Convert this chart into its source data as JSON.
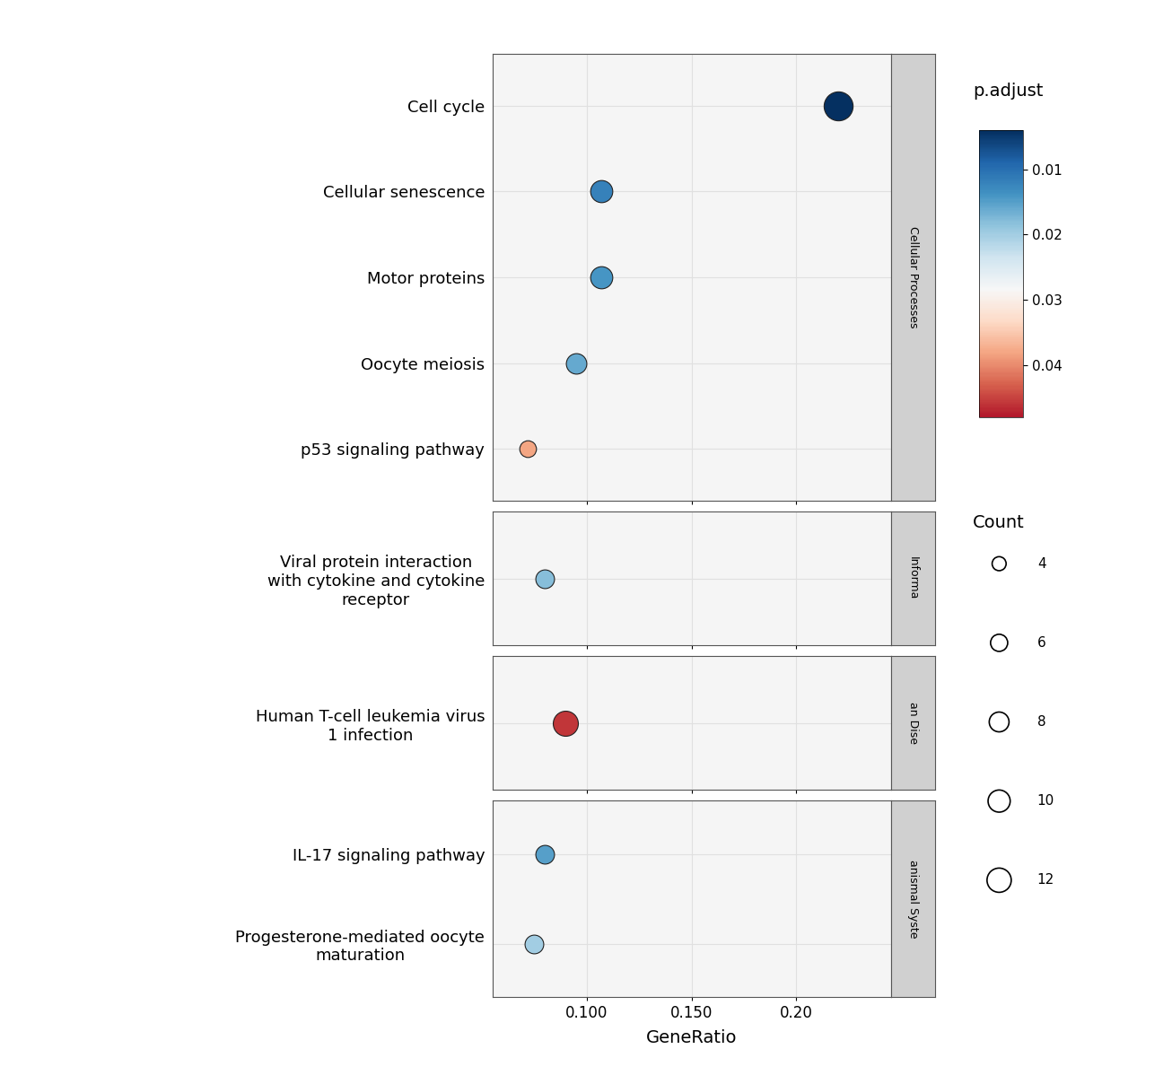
{
  "pathways": [
    {
      "name": "Cell cycle",
      "gene_ratio": 0.22,
      "p_adjust": 0.004,
      "count": 12,
      "category": "Cellular Processes"
    },
    {
      "name": "Cellular senescence",
      "gene_ratio": 0.107,
      "p_adjust": 0.012,
      "count": 7,
      "category": "Cellular Processes"
    },
    {
      "name": "Motor proteins",
      "gene_ratio": 0.107,
      "p_adjust": 0.014,
      "count": 7,
      "category": "Cellular Processes"
    },
    {
      "name": "Oocyte meiosis",
      "gene_ratio": 0.095,
      "p_adjust": 0.016,
      "count": 6,
      "category": "Cellular Processes"
    },
    {
      "name": "p53 signaling pathway",
      "gene_ratio": 0.072,
      "p_adjust": 0.038,
      "count": 4,
      "category": "Cellular Processes"
    },
    {
      "name": "Viral protein interaction\nwith cytokine and cytokine\nreceptor",
      "gene_ratio": 0.08,
      "p_adjust": 0.018,
      "count": 5,
      "category": "Informa"
    },
    {
      "name": "Human T-cell leukemia virus\n1 infection",
      "gene_ratio": 0.09,
      "p_adjust": 0.046,
      "count": 9,
      "category": "an Dise"
    },
    {
      "name": "IL-17 signaling pathway",
      "gene_ratio": 0.08,
      "p_adjust": 0.015,
      "count": 5,
      "category": "anismal Syste"
    },
    {
      "name": "Progesterone-mediated oocyte\nmaturation",
      "gene_ratio": 0.075,
      "p_adjust": 0.02,
      "count": 5,
      "category": "anismal Syste"
    }
  ],
  "categories_order": [
    "Cellular Processes",
    "Informa",
    "an Dise",
    "anismal Syste"
  ],
  "xlim": [
    0.055,
    0.245
  ],
  "xticks": [
    0.1,
    0.15,
    0.2
  ],
  "xticklabels": [
    "0.100",
    "0.150",
    "0.20"
  ],
  "xlabel": "GeneRatio",
  "p_adjust_vmin": 0.004,
  "p_adjust_vmax": 0.048,
  "colorbar_ticks": [
    0.01,
    0.02,
    0.03,
    0.04
  ],
  "count_legend_values": [
    4,
    6,
    8,
    10,
    12
  ],
  "panel_bg": "#f5f5f5",
  "grid_color": "#e0e0e0",
  "strip_bg": "#d0d0d0",
  "dot_edgecolor": "#222222",
  "font_size_pathway": 13,
  "font_size_axis": 12,
  "font_size_legend_title": 14
}
